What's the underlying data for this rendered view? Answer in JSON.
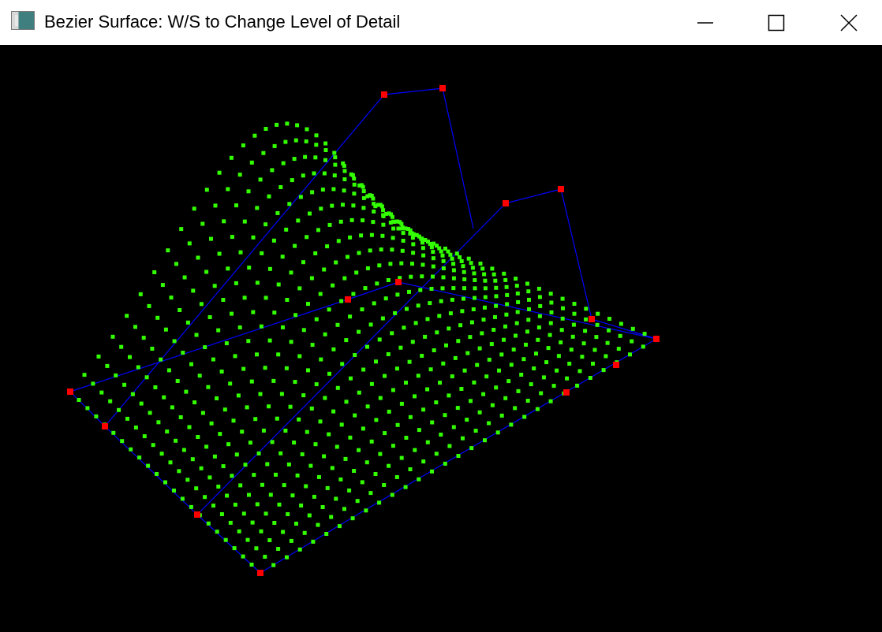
{
  "window": {
    "title": "Bezier Surface: W/S to Change Level of Detail",
    "icon": "application-icon",
    "controls": {
      "minimize_icon": "minimize-icon",
      "maximize_icon": "maximize-icon",
      "close_icon": "close-icon"
    }
  },
  "render": {
    "background_color": "#000000",
    "surface_point_color": "#33ff00",
    "control_polygon_color": "#0000ff",
    "control_point_color": "#ff0000"
  }
}
